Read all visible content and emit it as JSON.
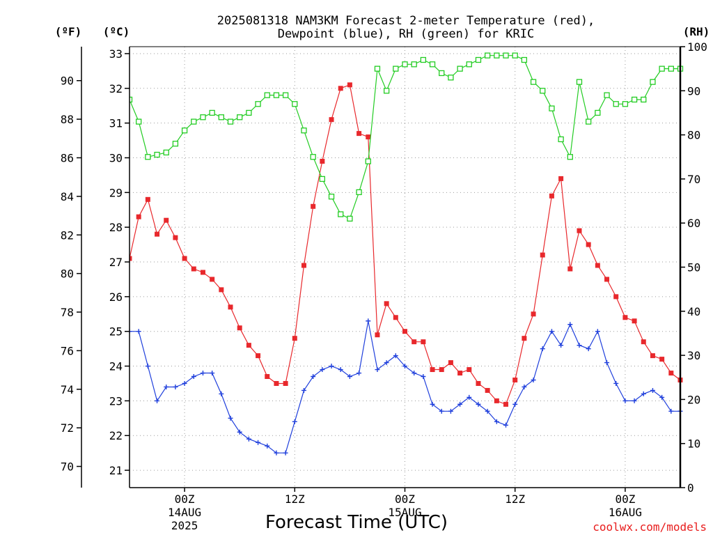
{
  "chart_data": {
    "type": "line",
    "title_lines": [
      "2025081318 NAM3KM Forecast 2-meter Temperature (red),",
      "Dewpoint (blue), RH (green) for KRIC"
    ],
    "units": {
      "fahrenheit": "(ºF)",
      "celsius": "(ºC)",
      "rh": "(RH)"
    },
    "xlabel": "Forecast Time (UTC)",
    "credit": "coolwx.com/models",
    "x_range_hours": [
      0,
      60
    ],
    "x_ticks": [
      {
        "hour": 6,
        "lines": [
          "00Z",
          "14AUG",
          "2025"
        ]
      },
      {
        "hour": 18,
        "lines": [
          "12Z"
        ]
      },
      {
        "hour": 30,
        "lines": [
          "00Z",
          "15AUG"
        ]
      },
      {
        "hour": 42,
        "lines": [
          "12Z"
        ]
      },
      {
        "hour": 54,
        "lines": [
          "00Z",
          "16AUG"
        ]
      }
    ],
    "grid": true,
    "y_left_c": {
      "range": [
        20.5,
        33.2
      ],
      "ticks": [
        "21",
        "22",
        "23",
        "24",
        "25",
        "26",
        "27",
        "28",
        "29",
        "30",
        "31",
        "32",
        "33"
      ]
    },
    "y_left_f": {
      "range": [
        68.9,
        91.76
      ],
      "ticks": [
        "70",
        "72",
        "74",
        "76",
        "78",
        "80",
        "82",
        "84",
        "86",
        "88",
        "90"
      ]
    },
    "y_right_rh": {
      "range": [
        0,
        100
      ],
      "ticks": [
        "0",
        "10",
        "20",
        "30",
        "40",
        "50",
        "60",
        "70",
        "80",
        "90",
        "100"
      ]
    },
    "series": [
      {
        "key": "temp",
        "color": "#e8282c",
        "marker": "filled-square",
        "axis": "celsius",
        "values": [
          27.1,
          28.3,
          28.8,
          27.8,
          28.2,
          27.7,
          27.1,
          26.8,
          26.7,
          26.5,
          26.2,
          25.7,
          25.1,
          24.6,
          24.3,
          23.7,
          23.5,
          23.5,
          24.8,
          26.9,
          28.6,
          29.9,
          31.1,
          32.0,
          32.1,
          30.7,
          30.6,
          24.9,
          25.8,
          25.4,
          25.0,
          24.7,
          24.7,
          23.9,
          23.9,
          24.1,
          23.8,
          23.9,
          23.5,
          23.3,
          23.0,
          22.9,
          23.6,
          24.8,
          25.5,
          27.2,
          28.9,
          29.4,
          26.8,
          27.9,
          27.5,
          26.9,
          26.5,
          26.0,
          25.4,
          25.3,
          24.7,
          24.3,
          24.2,
          23.8,
          23.6
        ]
      },
      {
        "key": "dewpoint",
        "color": "#1f3fdc",
        "marker": "plus",
        "axis": "celsius",
        "values": [
          25.0,
          25.0,
          24.0,
          23.0,
          23.4,
          23.4,
          23.5,
          23.7,
          23.8,
          23.8,
          23.2,
          22.5,
          22.1,
          21.9,
          21.8,
          21.7,
          21.5,
          21.5,
          22.4,
          23.3,
          23.7,
          23.9,
          24.0,
          23.9,
          23.7,
          23.8,
          25.3,
          23.9,
          24.1,
          24.3,
          24.0,
          23.8,
          23.7,
          22.9,
          22.7,
          22.7,
          22.9,
          23.1,
          22.9,
          22.7,
          22.4,
          22.3,
          22.9,
          23.4,
          23.6,
          24.5,
          25.0,
          24.6,
          25.2,
          24.6,
          24.5,
          25.0,
          24.1,
          23.5,
          23.0,
          23.0,
          23.2,
          23.3,
          23.1,
          22.7,
          22.7
        ]
      },
      {
        "key": "rh",
        "color": "#22cc22",
        "marker": "open-square",
        "axis": "rh",
        "values": [
          88,
          83,
          75,
          75.5,
          76,
          78,
          81,
          83,
          84,
          85,
          84,
          83,
          84,
          85,
          87,
          89,
          89,
          89,
          87,
          81,
          75,
          70,
          66,
          62,
          61,
          67,
          74,
          95,
          90,
          95,
          96,
          96,
          97,
          96,
          94,
          93,
          95,
          96,
          97,
          98,
          98,
          98,
          98,
          97,
          92,
          90,
          86,
          79,
          75,
          92,
          83,
          85,
          89,
          87,
          87,
          88,
          88,
          92,
          95,
          95,
          95
        ]
      }
    ]
  }
}
